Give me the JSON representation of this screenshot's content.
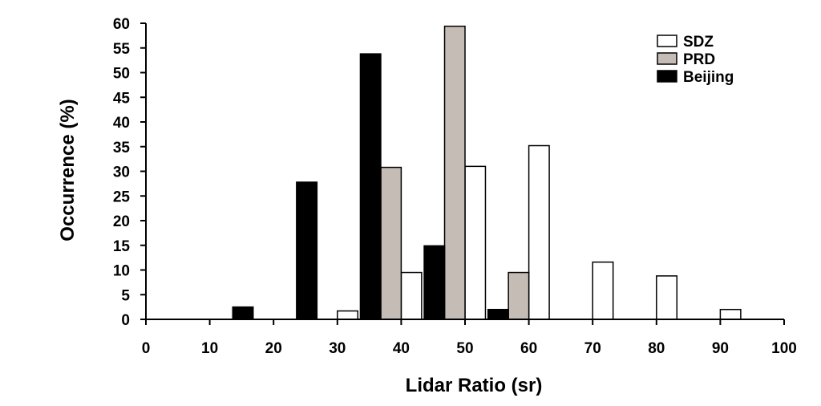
{
  "chart_data": {
    "type": "bar",
    "xlabel": "Lidar Ratio (sr)",
    "ylabel": "Occurrence (%)",
    "ylim": [
      0,
      60
    ],
    "yticks": [
      "0",
      "5",
      "10",
      "15",
      "20",
      "25",
      "30",
      "35",
      "40",
      "45",
      "50",
      "55",
      "60"
    ],
    "xlim": [
      0,
      100
    ],
    "xticks": [
      "0",
      "10",
      "20",
      "30",
      "40",
      "50",
      "60",
      "70",
      "80",
      "90",
      "100"
    ],
    "legend_position": "top-right",
    "series": [
      {
        "name": "SDZ",
        "color": "#ffffff",
        "points": [
          {
            "x": 30,
            "y": 1.7
          },
          {
            "x": 40,
            "y": 9.5
          },
          {
            "x": 50,
            "y": 31.0
          },
          {
            "x": 60,
            "y": 35.2
          },
          {
            "x": 70,
            "y": 11.6
          },
          {
            "x": 80,
            "y": 8.8
          },
          {
            "x": 90,
            "y": 2.0
          }
        ]
      },
      {
        "name": "PRD",
        "color": "#c5bcb5",
        "points": [
          {
            "x": 40,
            "y": 30.8
          },
          {
            "x": 50,
            "y": 59.4
          },
          {
            "x": 60,
            "y": 9.5
          }
        ]
      },
      {
        "name": "Beijing",
        "color": "#000000",
        "points": [
          {
            "x": 20,
            "y": 2.5
          },
          {
            "x": 30,
            "y": 27.8
          },
          {
            "x": 40,
            "y": 53.8
          },
          {
            "x": 50,
            "y": 14.9
          },
          {
            "x": 60,
            "y": 2.0
          }
        ]
      }
    ]
  }
}
